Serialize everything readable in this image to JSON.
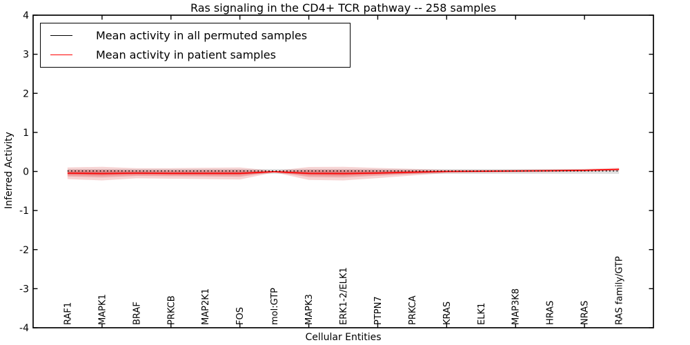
{
  "chart_data": {
    "type": "line",
    "title": "Ras signaling in the CD4+ TCR pathway -- 258 samples",
    "xlabel": "Cellular Entities",
    "ylabel": "Inferred Activity",
    "ylim": [
      -4,
      4
    ],
    "yticks": [
      -4,
      -3,
      -2,
      -1,
      0,
      1,
      2,
      3,
      4
    ],
    "grid": false,
    "legend_position": "upper left",
    "frame_color": "#000000",
    "categories": [
      "RAF1",
      "MAPK1",
      "BRAF",
      "PRKCB",
      "MAP2K1",
      "FOS",
      "mol:GTP",
      "MAPK3",
      "ERK1-2/ELK1",
      "PTPN7",
      "PRKCA",
      "KRAS",
      "ELK1",
      "MAP3K8",
      "HRAS",
      "NRAS",
      "RAS family/GTP"
    ],
    "top_tick_category_indices": [
      1,
      3,
      5,
      7,
      9,
      11,
      13,
      15
    ],
    "series": [
      {
        "name": "Mean activity in all permuted samples",
        "color": "#000000",
        "line_style": "dotted",
        "values": [
          0.015,
          0.015,
          0.015,
          0.015,
          0.015,
          0.015,
          0.015,
          0.015,
          0.015,
          0.015,
          0.015,
          0.015,
          0.015,
          0.015,
          0.015,
          0.015,
          0.015
        ]
      },
      {
        "name": "Mean activity in patient samples",
        "color": "#ff0000",
        "line_style": "solid",
        "values": [
          -0.045,
          -0.055,
          -0.045,
          -0.05,
          -0.05,
          -0.05,
          -0.005,
          -0.05,
          -0.055,
          -0.04,
          -0.02,
          0.0,
          0.005,
          0.012,
          0.02,
          0.03,
          0.055
        ]
      }
    ],
    "bands": [
      {
        "name": "permuted-samples-band",
        "color": "#999999",
        "opacity": 0.3,
        "center_value": 0.0,
        "half_width": 0.062
      },
      {
        "name": "patient-samples-band",
        "color": "#d62f2f",
        "center_series": 1,
        "half_widths": [
          0.15,
          0.175,
          0.13,
          0.135,
          0.145,
          0.155,
          0.02,
          0.165,
          0.175,
          0.13,
          0.085,
          0.04,
          0.035,
          0.035,
          0.035,
          0.035,
          0.04
        ],
        "layers": [
          {
            "scale": 1.0,
            "opacity": 0.2
          },
          {
            "scale": 0.55,
            "opacity": 0.25
          },
          {
            "scale": 0.28,
            "opacity": 0.3
          }
        ]
      }
    ]
  }
}
